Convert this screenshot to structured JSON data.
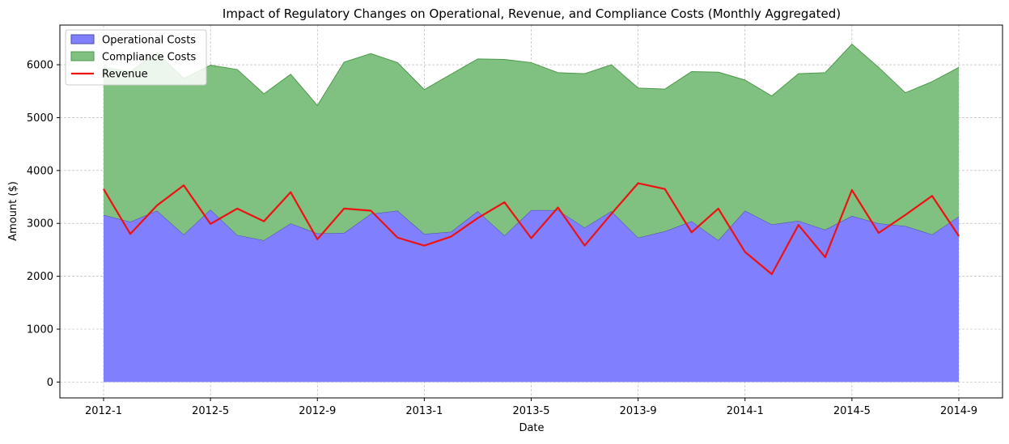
{
  "chart_data": {
    "type": "area",
    "title": "Impact of Regulatory Changes on Operational, Revenue, and Compliance Costs (Monthly Aggregated)",
    "xlabel": "Date",
    "ylabel": "Amount ($)",
    "ylim": [
      -300,
      6750
    ],
    "yticks": [
      0,
      1000,
      2000,
      3000,
      4000,
      5000,
      6000
    ],
    "x_tick_labels": [
      "2012-1",
      "2012-5",
      "2012-9",
      "2013-1",
      "2013-5",
      "2013-9",
      "2014-1",
      "2014-5",
      "2014-9"
    ],
    "x_tick_indices": [
      0,
      4,
      8,
      12,
      16,
      20,
      24,
      28,
      32
    ],
    "x": [
      "2012-1",
      "2012-2",
      "2012-3",
      "2012-4",
      "2012-5",
      "2012-6",
      "2012-7",
      "2012-8",
      "2012-9",
      "2012-10",
      "2012-11",
      "2012-12",
      "2013-1",
      "2013-2",
      "2013-3",
      "2013-4",
      "2013-5",
      "2013-6",
      "2013-7",
      "2013-8",
      "2013-9",
      "2013-10",
      "2013-11",
      "2013-12",
      "2014-1",
      "2014-2",
      "2014-3",
      "2014-4",
      "2014-5",
      "2014-6",
      "2014-7",
      "2014-8",
      "2014-9"
    ],
    "grid": true,
    "legend_position": "top-left",
    "stacked": true,
    "series": [
      {
        "name": "Operational Costs",
        "kind": "area",
        "color": "#8080ff",
        "edge_color": "#4a4aa8",
        "values": [
          3160,
          3030,
          3240,
          2790,
          3260,
          2780,
          2680,
          3000,
          2810,
          2820,
          3180,
          3240,
          2800,
          2840,
          3230,
          2770,
          3250,
          3250,
          2920,
          3230,
          2730,
          2850,
          3040,
          2680,
          3240,
          2980,
          3050,
          2880,
          3140,
          3000,
          2950,
          2790,
          3130
        ]
      },
      {
        "name": "Compliance Costs",
        "kind": "area",
        "color": "#80c080",
        "edge_color": "#4c9a4c",
        "values": [
          2790,
          2840,
          2990,
          2950,
          2730,
          3130,
          2770,
          2820,
          2420,
          3230,
          3030,
          2800,
          2730,
          2980,
          2880,
          3330,
          2790,
          2600,
          2910,
          2770,
          2830,
          2690,
          2830,
          3180,
          2470,
          2430,
          2780,
          2970,
          3250,
          2950,
          2520,
          2890,
          2820
        ]
      },
      {
        "name": "Revenue",
        "kind": "line",
        "color": "#ee1111",
        "values": [
          3650,
          2800,
          3340,
          3720,
          2990,
          3280,
          3040,
          3590,
          2700,
          3280,
          3240,
          2730,
          2580,
          2750,
          3100,
          3400,
          2720,
          3300,
          2580,
          3180,
          3760,
          3650,
          2830,
          3280,
          2460,
          2040,
          2970,
          2360,
          3630,
          2820,
          3160,
          3520,
          2760
        ]
      }
    ]
  }
}
